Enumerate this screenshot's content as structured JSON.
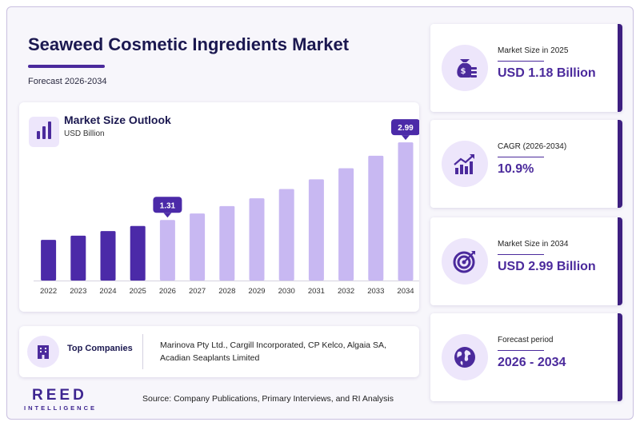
{
  "header": {
    "title": "Seaweed Cosmetic Ingredients Market",
    "subtitle": "Forecast 2026-2034"
  },
  "chart_card": {
    "title": "Market Size Outlook",
    "unit": "USD Billion"
  },
  "chart_data": {
    "type": "bar",
    "title": "Market Size Outlook",
    "ylabel": "USD Billion",
    "categories": [
      "2022",
      "2023",
      "2024",
      "2025",
      "2026",
      "2027",
      "2028",
      "2029",
      "2030",
      "2031",
      "2032",
      "2033",
      "2034"
    ],
    "values": [
      0.88,
      0.97,
      1.07,
      1.18,
      1.31,
      1.45,
      1.61,
      1.78,
      1.98,
      2.19,
      2.43,
      2.7,
      2.99
    ],
    "labels": [
      {
        "category": "2026",
        "text": "1.31"
      },
      {
        "category": "2034",
        "text": "2.99"
      }
    ],
    "ylim": [
      0,
      3.2
    ],
    "grid": false,
    "colors": {
      "historical": "#4b2aa8",
      "forecast": "#c8b8f2",
      "label_bg": "#4b2aa8"
    },
    "historical_until": "2025"
  },
  "companies": {
    "label": "Top Companies",
    "text": "Marinova Pty Ltd., Cargill Incorporated, CP Kelco, Algaia SA, Acadian Seaplants Limited"
  },
  "footer": {
    "logo_main": "REED",
    "logo_sub": "INTELLIGENCE",
    "source": "Source: Company Publications, Primary Interviews, and RI Analysis"
  },
  "kpis": [
    {
      "label": "Market Size in 2025",
      "value": "USD 1.18 Billion",
      "icon": "money-bag-icon"
    },
    {
      "label": "CAGR (2026-2034)",
      "value": "10.9%",
      "icon": "growth-chart-icon"
    },
    {
      "label": "Market Size in 2034",
      "value": "USD 2.99 Billion",
      "icon": "target-icon"
    },
    {
      "label": "Forecast period",
      "value": "2026 - 2034",
      "icon": "globe-icon"
    }
  ],
  "colors": {
    "accent": "#4b2a9c",
    "accent_light": "#ede6fb",
    "title": "#1b1850"
  }
}
